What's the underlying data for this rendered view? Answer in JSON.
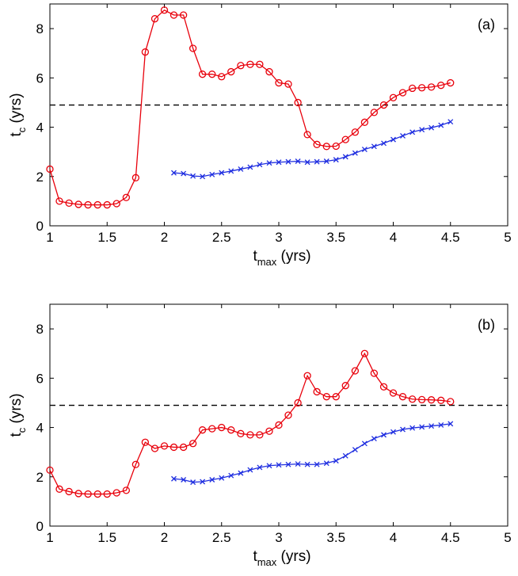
{
  "chart_data": [
    {
      "type": "line",
      "panel_label": "(a)",
      "xlabel_main": "t",
      "xlabel_sub": "max",
      "xlabel_unit": " (yrs)",
      "ylabel_main": "t",
      "ylabel_sub": "c",
      "ylabel_unit": " (yrs)",
      "xlim": [
        1,
        5
      ],
      "ylim": [
        0,
        9
      ],
      "xticks": [
        1,
        1.5,
        2,
        2.5,
        3,
        3.5,
        4,
        4.5,
        5
      ],
      "xtick_labels": [
        "1",
        "1.5",
        "2",
        "2.5",
        "3",
        "3.5",
        "4",
        "4.5",
        "5"
      ],
      "yticks": [
        0,
        2,
        4,
        6,
        8
      ],
      "ytick_labels": [
        "0",
        "2",
        "4",
        "6",
        "8"
      ],
      "reference_line": {
        "y": 4.9,
        "style": "dashed",
        "color": "#000000"
      },
      "series": [
        {
          "name": "circles",
          "color": "#e8000b",
          "marker": "circle",
          "x": [
            1.0,
            1.083,
            1.167,
            1.25,
            1.333,
            1.417,
            1.5,
            1.583,
            1.667,
            1.75,
            1.833,
            1.917,
            2.0,
            2.083,
            2.167,
            2.25,
            2.333,
            2.417,
            2.5,
            2.583,
            2.667,
            2.75,
            2.833,
            2.917,
            3.0,
            3.083,
            3.167,
            3.25,
            3.333,
            3.417,
            3.5,
            3.583,
            3.667,
            3.75,
            3.833,
            3.917,
            4.0,
            4.083,
            4.167,
            4.25,
            4.333,
            4.417,
            4.5
          ],
          "values": [
            2.3,
            1.0,
            0.92,
            0.87,
            0.85,
            0.85,
            0.85,
            0.9,
            1.15,
            1.95,
            7.05,
            8.4,
            8.75,
            8.55,
            8.55,
            7.2,
            6.15,
            6.15,
            6.05,
            6.25,
            6.5,
            6.55,
            6.55,
            6.25,
            5.8,
            5.75,
            5.0,
            3.7,
            3.3,
            3.22,
            3.23,
            3.5,
            3.8,
            4.2,
            4.6,
            4.9,
            5.2,
            5.4,
            5.58,
            5.6,
            5.63,
            5.7,
            5.8
          ]
        },
        {
          "name": "crosses",
          "color": "#1f2ee0",
          "marker": "x",
          "x": [
            2.083,
            2.167,
            2.25,
            2.333,
            2.417,
            2.5,
            2.583,
            2.667,
            2.75,
            2.833,
            2.917,
            3.0,
            3.083,
            3.167,
            3.25,
            3.333,
            3.417,
            3.5,
            3.583,
            3.667,
            3.75,
            3.833,
            3.917,
            4.0,
            4.083,
            4.167,
            4.25,
            4.333,
            4.417,
            4.5
          ],
          "values": [
            2.15,
            2.12,
            2.02,
            2.0,
            2.08,
            2.15,
            2.22,
            2.3,
            2.38,
            2.48,
            2.55,
            2.58,
            2.6,
            2.62,
            2.58,
            2.6,
            2.62,
            2.68,
            2.8,
            2.95,
            3.1,
            3.22,
            3.35,
            3.5,
            3.65,
            3.8,
            3.9,
            3.98,
            4.08,
            4.22
          ]
        }
      ]
    },
    {
      "type": "line",
      "panel_label": "(b)",
      "xlabel_main": "t",
      "xlabel_sub": "max",
      "xlabel_unit": " (yrs)",
      "ylabel_main": "t",
      "ylabel_sub": "c",
      "ylabel_unit": " (yrs)",
      "xlim": [
        1,
        5
      ],
      "ylim": [
        0,
        9
      ],
      "xticks": [
        1,
        1.5,
        2,
        2.5,
        3,
        3.5,
        4,
        4.5,
        5
      ],
      "xtick_labels": [
        "1",
        "1.5",
        "2",
        "2.5",
        "3",
        "3.5",
        "4",
        "4.5",
        "5"
      ],
      "yticks": [
        0,
        2,
        4,
        6,
        8
      ],
      "ytick_labels": [
        "0",
        "2",
        "4",
        "6",
        "8"
      ],
      "reference_line": {
        "y": 4.9,
        "style": "dashed",
        "color": "#000000"
      },
      "series": [
        {
          "name": "circles",
          "color": "#e8000b",
          "marker": "circle",
          "x": [
            1.0,
            1.083,
            1.167,
            1.25,
            1.333,
            1.417,
            1.5,
            1.583,
            1.667,
            1.75,
            1.833,
            1.917,
            2.0,
            2.083,
            2.167,
            2.25,
            2.333,
            2.417,
            2.5,
            2.583,
            2.667,
            2.75,
            2.833,
            2.917,
            3.0,
            3.083,
            3.167,
            3.25,
            3.333,
            3.417,
            3.5,
            3.583,
            3.667,
            3.75,
            3.833,
            3.917,
            4.0,
            4.083,
            4.167,
            4.25,
            4.333,
            4.417,
            4.5
          ],
          "values": [
            2.27,
            1.5,
            1.4,
            1.32,
            1.3,
            1.3,
            1.3,
            1.35,
            1.45,
            2.5,
            3.4,
            3.15,
            3.25,
            3.2,
            3.2,
            3.35,
            3.9,
            3.95,
            4.0,
            3.9,
            3.75,
            3.7,
            3.7,
            3.85,
            4.1,
            4.5,
            5.0,
            6.1,
            5.45,
            5.25,
            5.25,
            5.7,
            6.3,
            7.0,
            6.2,
            5.65,
            5.4,
            5.25,
            5.15,
            5.13,
            5.12,
            5.1,
            5.05
          ]
        },
        {
          "name": "crosses",
          "color": "#1f2ee0",
          "marker": "x",
          "x": [
            2.083,
            2.167,
            2.25,
            2.333,
            2.417,
            2.5,
            2.583,
            2.667,
            2.75,
            2.833,
            2.917,
            3.0,
            3.083,
            3.167,
            3.25,
            3.333,
            3.417,
            3.5,
            3.583,
            3.667,
            3.75,
            3.833,
            3.917,
            4.0,
            4.083,
            4.167,
            4.25,
            4.333,
            4.417,
            4.5
          ],
          "values": [
            1.92,
            1.88,
            1.78,
            1.8,
            1.88,
            1.95,
            2.05,
            2.15,
            2.28,
            2.38,
            2.45,
            2.48,
            2.5,
            2.52,
            2.5,
            2.5,
            2.55,
            2.65,
            2.85,
            3.1,
            3.35,
            3.55,
            3.7,
            3.82,
            3.92,
            3.98,
            4.02,
            4.06,
            4.1,
            4.15
          ]
        }
      ]
    }
  ]
}
